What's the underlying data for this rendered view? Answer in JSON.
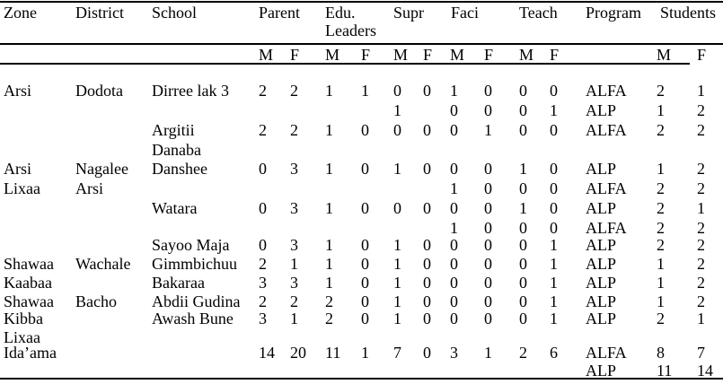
{
  "document": {
    "kind": "table",
    "header": {
      "columns": [
        "Zone",
        "District",
        "School",
        "Parent",
        "Edu. Leaders",
        "Supr",
        "Faci",
        "Teach",
        "Program",
        "Students"
      ],
      "sub_m": "M",
      "sub_f": "F"
    },
    "programs": [
      "ALFA",
      "ALP"
    ],
    "rows": [
      {
        "zone": "Arsi",
        "district": "Dodota",
        "school": "Dirree lak 3",
        "parent_m": "2",
        "parent_f": "2",
        "edu_m": "1",
        "edu_f": "1",
        "supr_m": "0",
        "supr_f": "0",
        "faci_m": "1",
        "faci_f": "0",
        "teach_m": "0",
        "teach_f": "0",
        "program": "ALFA",
        "students_m": "2",
        "students_f": "1"
      },
      {
        "supr_m": "1",
        "faci_m": "0",
        "faci_f": "0",
        "teach_m": "0",
        "teach_f": "1",
        "program": "ALP",
        "students_m": "1",
        "students_f": "2"
      },
      {
        "school": "Argitii",
        "parent_m": "2",
        "parent_f": "2",
        "edu_m": "1",
        "edu_f": "0",
        "supr_m": "0",
        "supr_f": "0",
        "faci_m": "0",
        "faci_f": "1",
        "teach_m": "0",
        "teach_f": "0",
        "program": "ALFA",
        "students_m": "2",
        "students_f": "2"
      },
      {
        "school": "Danaba"
      },
      {
        "zone": "Arsi",
        "district": "Nagalee",
        "school": "Danshee",
        "parent_m": "0",
        "parent_f": "3",
        "edu_m": "1",
        "edu_f": "0",
        "supr_m": "1",
        "supr_f": "0",
        "faci_m": "0",
        "faci_f": "0",
        "teach_m": "1",
        "teach_f": "0",
        "program": "ALP",
        "students_m": "1",
        "students_f": "2"
      },
      {
        "zone": "Lixaa",
        "district": "Arsi",
        "faci_m": "1",
        "faci_f": "0",
        "teach_m": "0",
        "teach_f": "0",
        "program": "ALFA",
        "students_m": "2",
        "students_f": "2"
      },
      {
        "school": "Watara",
        "parent_m": "0",
        "parent_f": "3",
        "edu_m": "1",
        "edu_f": "0",
        "supr_m": "0",
        "supr_f": "0",
        "faci_m": "0",
        "faci_f": "0",
        "teach_m": "1",
        "teach_f": "0",
        "program": "ALP",
        "students_m": "2",
        "students_f": "1"
      },
      {
        "faci_m": "1",
        "faci_f": "0",
        "teach_m": "0",
        "teach_f": "0",
        "program": "ALFA",
        "students_m": "2",
        "students_f": "2"
      },
      {
        "school": "Sayoo Maja",
        "parent_m": "0",
        "parent_f": "3",
        "edu_m": "1",
        "edu_f": "0",
        "supr_m": "1",
        "supr_f": "0",
        "faci_m": "0",
        "faci_f": "0",
        "teach_m": "0",
        "teach_f": "1",
        "program": "ALP",
        "students_m": "2",
        "students_f": "2"
      },
      {
        "zone": "Shawaa",
        "district": "Wachale",
        "school": "Gimmbichuu",
        "parent_m": "2",
        "parent_f": "1",
        "edu_m": "1",
        "edu_f": "0",
        "supr_m": "1",
        "supr_f": "0",
        "faci_m": "0",
        "faci_f": "0",
        "teach_m": "0",
        "teach_f": "1",
        "program": "ALP",
        "students_m": "1",
        "students_f": "2"
      },
      {
        "zone": "Kaabaa",
        "school": "Bakaraa",
        "parent_m": "3",
        "parent_f": "3",
        "edu_m": "1",
        "edu_f": "0",
        "supr_m": "1",
        "supr_f": "0",
        "faci_m": "0",
        "faci_f": "0",
        "teach_m": "0",
        "teach_f": "1",
        "program": "ALP",
        "students_m": "1",
        "students_f": "2"
      },
      {
        "zone": "Shawaa",
        "district": "Bacho",
        "school": "Abdii Gudina",
        "parent_m": "2",
        "parent_f": "2",
        "edu_m": "2",
        "edu_f": "0",
        "supr_m": "1",
        "supr_f": "0",
        "faci_m": "0",
        "faci_f": "0",
        "teach_m": "0",
        "teach_f": "1",
        "program": "ALP",
        "students_m": "1",
        "students_f": "2"
      },
      {
        "zone": "Kibba",
        "school": "Awash Bune",
        "parent_m": "3",
        "parent_f": "1",
        "edu_m": "2",
        "edu_f": "0",
        "supr_m": "1",
        "supr_f": "0",
        "faci_m": "0",
        "faci_f": "0",
        "teach_m": "0",
        "teach_f": "1",
        "program": "ALP",
        "students_m": "2",
        "students_f": "1"
      },
      {
        "zone": "Lixaa"
      },
      {
        "zone": "Ida’ama",
        "parent_m": "14",
        "parent_f": "20",
        "edu_m": "11",
        "edu_f": "1",
        "supr_m": "7",
        "supr_f": "0",
        "faci_m": "3",
        "faci_f": "1",
        "teach_m": "2",
        "teach_f": "6",
        "program": "ALFA",
        "students_m": "8",
        "students_f": "7"
      },
      {
        "program": "ALP",
        "students_m": "11",
        "students_f": "14"
      }
    ]
  }
}
